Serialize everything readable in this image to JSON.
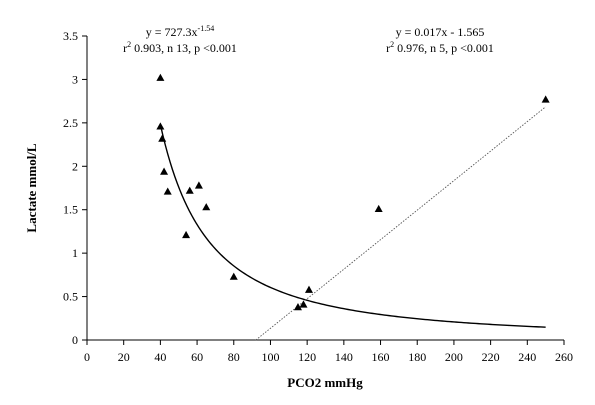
{
  "chart_data": {
    "type": "scatter",
    "xlabel": "PCO2  mmHg",
    "ylabel": "Lactate  mmol/L",
    "xlim": [
      0,
      260
    ],
    "ylim": [
      0,
      3.5
    ],
    "x_ticks": [
      0,
      20,
      40,
      60,
      80,
      100,
      120,
      140,
      160,
      180,
      200,
      220,
      240,
      260
    ],
    "y_ticks": [
      0,
      0.5,
      1,
      1.5,
      2,
      2.5,
      3,
      3.5
    ],
    "x_tick_labels": [
      "0",
      "20",
      "40",
      "60",
      "80",
      "100",
      "120",
      "140",
      "160",
      "180",
      "200",
      "220",
      "240",
      "260"
    ],
    "y_tick_labels": [
      "0",
      "0.5",
      "1",
      "1.5",
      "2",
      "2.5",
      "3",
      "3.5"
    ],
    "grid": false,
    "marker": "triangle",
    "points": [
      {
        "x": 40,
        "y": 3.02
      },
      {
        "x": 40,
        "y": 2.46
      },
      {
        "x": 41,
        "y": 2.32
      },
      {
        "x": 42,
        "y": 1.94
      },
      {
        "x": 44,
        "y": 1.71
      },
      {
        "x": 54,
        "y": 1.21
      },
      {
        "x": 56,
        "y": 1.72
      },
      {
        "x": 61,
        "y": 1.78
      },
      {
        "x": 65,
        "y": 1.53
      },
      {
        "x": 80,
        "y": 0.73
      },
      {
        "x": 115,
        "y": 0.38
      },
      {
        "x": 118,
        "y": 0.41
      },
      {
        "x": 121,
        "y": 0.58
      },
      {
        "x": 159,
        "y": 1.51
      },
      {
        "x": 250,
        "y": 2.77
      }
    ],
    "fits": [
      {
        "kind": "power",
        "coefficient": 727.3,
        "exponent": -1.54,
        "x_range": [
          40,
          250
        ],
        "style": "solid",
        "equation_main": "y = 727.3x",
        "equation_sup": "-1.54",
        "stats_prefix": "r",
        "stats_sup": "2",
        "stats_rest": " 0.903, n 13, p <0.001"
      },
      {
        "kind": "linear",
        "slope": 0.017,
        "intercept": -1.565,
        "x_range": [
          92,
          250
        ],
        "style": "dotted",
        "equation_main": "y = 0.017x - 1.565",
        "equation_sup": "",
        "stats_prefix": "r",
        "stats_sup": "2",
        "stats_rest": " 0.976, n 5, p <0.001"
      }
    ]
  }
}
